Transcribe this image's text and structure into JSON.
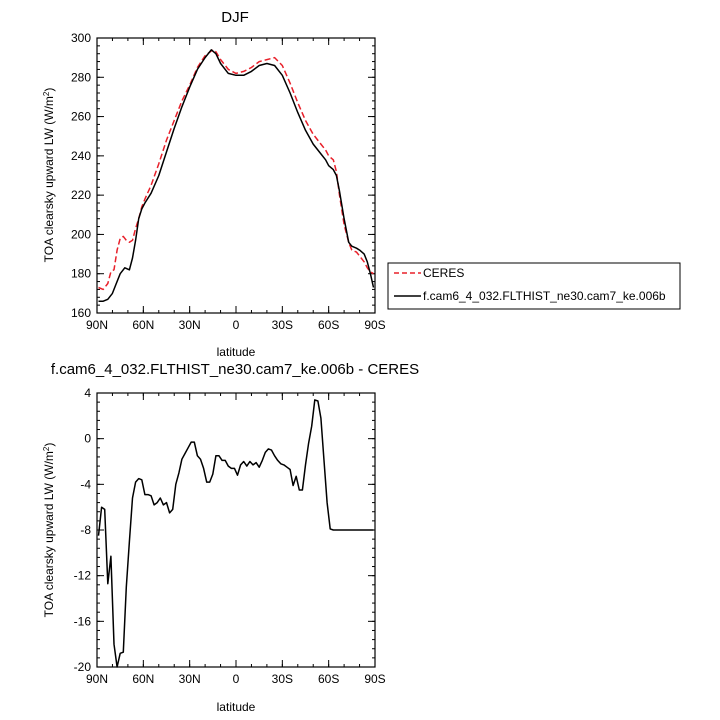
{
  "chart_data": [
    {
      "type": "line",
      "title": "DJF",
      "xlabel": "latitude",
      "ylabel": "TOA clearsky upward LW (W/m",
      "ylabel_sup": "2",
      "ylabel_close": ")",
      "xlim": [
        90,
        -90
      ],
      "ylim": [
        160,
        300
      ],
      "x_tick_values": [
        90,
        60,
        30,
        0,
        -30,
        -60,
        -90
      ],
      "x_tick_labels": [
        "90N",
        "60N",
        "30N",
        "0",
        "30S",
        "60S",
        "90S"
      ],
      "y_ticks": [
        160,
        180,
        200,
        220,
        240,
        260,
        280,
        300
      ],
      "legend_position": "right",
      "series": [
        {
          "name": "CERES",
          "color": "#e8202a",
          "dash": "dashed",
          "x": [
            89,
            86,
            83,
            81,
            79,
            77,
            75,
            73,
            71,
            69,
            67,
            65,
            63,
            61,
            59,
            55,
            50,
            45,
            40,
            35,
            30,
            25,
            20,
            15,
            13,
            10,
            5,
            0,
            -5,
            -10,
            -15,
            -20,
            -25,
            -30,
            -35,
            -40,
            -45,
            -50,
            -55,
            -58,
            -60,
            -63,
            -65,
            -67,
            -70,
            -73,
            -75,
            -78,
            -80,
            -83,
            -85,
            -87,
            -89
          ],
          "y": [
            173,
            172,
            175,
            181,
            182,
            192,
            198,
            199,
            197,
            196,
            197,
            203,
            208,
            214,
            218,
            225,
            236,
            248,
            258,
            268,
            276,
            285,
            291,
            294,
            293,
            289,
            284,
            282,
            283,
            285,
            288,
            289,
            290,
            286,
            277,
            267,
            258,
            251,
            246,
            243,
            240,
            238,
            232,
            220,
            205,
            196,
            192,
            191,
            189,
            186,
            183,
            181,
            180
          ]
        },
        {
          "name": "f.cam6_4_032.FLTHIST_ne30.cam7_ke.006b",
          "color": "#000000",
          "dash": "solid",
          "x": [
            89,
            86,
            83,
            80,
            78,
            75,
            72,
            69,
            67,
            65,
            63,
            61,
            59,
            55,
            50,
            45,
            40,
            35,
            30,
            25,
            20,
            16,
            13,
            10,
            5,
            0,
            -5,
            -10,
            -15,
            -20,
            -25,
            -30,
            -35,
            -40,
            -45,
            -50,
            -55,
            -58,
            -60,
            -63,
            -65,
            -67,
            -70,
            -73,
            -75,
            -78,
            -80,
            -83,
            -85,
            -87,
            -89
          ],
          "y": [
            166,
            166,
            167,
            170,
            174,
            180,
            183,
            182,
            188,
            197,
            208,
            213,
            216,
            221,
            230,
            242,
            254,
            265,
            275,
            284,
            290,
            294,
            292,
            287,
            282,
            281,
            281,
            283,
            286,
            287,
            286,
            281,
            272,
            262,
            253,
            246,
            241,
            238,
            235,
            233,
            230,
            222,
            208,
            196,
            194,
            193,
            192,
            190,
            186,
            180,
            173
          ]
        }
      ]
    },
    {
      "type": "line",
      "title": "f.cam6_4_032.FLTHIST_ne30.cam7_ke.006b - CERES",
      "xlabel": "latitude",
      "ylabel": "TOA clearsky upward LW (W/m",
      "ylabel_sup": "2",
      "ylabel_close": ")",
      "xlim": [
        90,
        -90
      ],
      "ylim": [
        -20,
        4
      ],
      "x_tick_values": [
        90,
        60,
        30,
        0,
        -30,
        -60,
        -90
      ],
      "x_tick_labels": [
        "90N",
        "60N",
        "30N",
        "0",
        "30S",
        "60S",
        "90S"
      ],
      "y_ticks": [
        -20,
        -16,
        -12,
        -8,
        -4,
        0,
        4
      ],
      "series": [
        {
          "name": "",
          "color": "#000000",
          "dash": "solid",
          "x": [
            89,
            87,
            85,
            83,
            81,
            79,
            77,
            75,
            73,
            71,
            69,
            67,
            65,
            63,
            61,
            59,
            57,
            55,
            53,
            51,
            49,
            47,
            45,
            43,
            41,
            39,
            37,
            35,
            33,
            31,
            29,
            27,
            25,
            23,
            21,
            19,
            17,
            15,
            13,
            11,
            9,
            7,
            5,
            3,
            1,
            -1,
            -3,
            -5,
            -7,
            -9,
            -11,
            -13,
            -15,
            -17,
            -19,
            -21,
            -23,
            -25,
            -27,
            -29,
            -31,
            -33,
            -35,
            -37,
            -39,
            -41,
            -43,
            -45,
            -47,
            -49,
            -51,
            -53,
            -55,
            -57,
            -59,
            -61,
            -63,
            -65,
            -67,
            -69,
            -71,
            -73,
            -75,
            -77,
            -79,
            -81,
            -83,
            -85,
            -87,
            -89
          ],
          "y": [
            -8.5,
            -6.0,
            -6.2,
            -12.7,
            -10.3,
            -18.0,
            -20.0,
            -18.8,
            -18.7,
            -13.0,
            -9.0,
            -5.2,
            -3.8,
            -3.5,
            -3.6,
            -4.9,
            -4.9,
            -5.0,
            -5.8,
            -5.6,
            -5.2,
            -5.8,
            -5.6,
            -6.5,
            -6.2,
            -4.0,
            -3.0,
            -1.8,
            -1.3,
            -0.8,
            -0.3,
            -0.3,
            -1.5,
            -1.8,
            -2.6,
            -3.8,
            -3.8,
            -3.1,
            -1.5,
            -1.5,
            -1.9,
            -1.9,
            -2.4,
            -2.6,
            -2.6,
            -3.2,
            -2.3,
            -2.0,
            -2.4,
            -2.0,
            -2.3,
            -2.1,
            -2.5,
            -1.9,
            -1.2,
            -0.9,
            -1.0,
            -1.5,
            -1.9,
            -2.2,
            -2.3,
            -2.5,
            -2.7,
            -4.1,
            -3.3,
            -4.5,
            -4.5,
            -2.3,
            -0.4,
            1.1,
            3.4,
            3.3,
            1.8,
            -1.9,
            -5.6,
            -7.9,
            -8.0,
            -8.0,
            -8.0,
            -8.0,
            -8.0,
            -8.0,
            -8.0,
            -8.0,
            -8.0,
            -8.0,
            -8.0,
            -8.0,
            -8.0,
            -8.0
          ]
        }
      ]
    }
  ]
}
